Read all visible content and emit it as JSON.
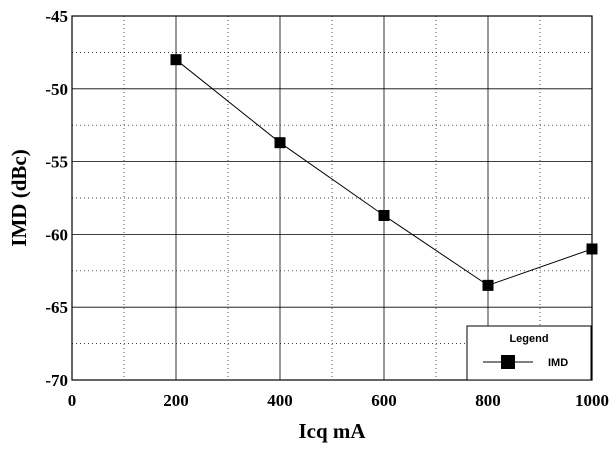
{
  "chart_data": {
    "type": "line",
    "xlabel": "Icq mA",
    "ylabel": "IMD (dBc)",
    "xlim": [
      0,
      1000
    ],
    "ylim": [
      -70,
      -45
    ],
    "x_ticks": [
      0,
      200,
      400,
      600,
      800,
      1000
    ],
    "y_ticks": [
      -45,
      -50,
      -55,
      -60,
      -65,
      -70
    ],
    "grid": true,
    "legend_title": "Legend",
    "legend_position": "bottom-right",
    "series": [
      {
        "name": "IMD",
        "color": "#000000",
        "marker": "square",
        "x": [
          200,
          400,
          600,
          800,
          1000
        ],
        "y": [
          -48.0,
          -53.7,
          -58.7,
          -63.5,
          -61.0
        ]
      }
    ]
  }
}
